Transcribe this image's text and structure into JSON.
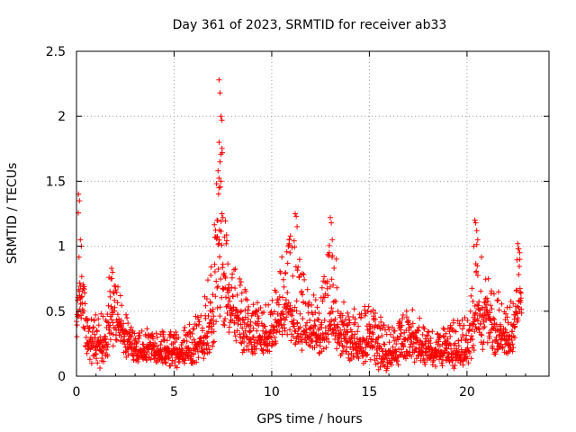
{
  "chart_data": {
    "type": "scatter",
    "title": "Day 361 of 2023, SRMTID for receiver ab33",
    "xlabel": "GPS time / hours",
    "ylabel": "SRMTID / TECUs",
    "xlim": [
      0,
      24.2
    ],
    "ylim": [
      0,
      2.5
    ],
    "xticks": [
      0,
      5,
      10,
      15,
      20
    ],
    "xtick_labels": [
      "0",
      "5",
      "10",
      "15",
      "20"
    ],
    "yticks": [
      0,
      0.5,
      1,
      1.5,
      2,
      2.5
    ],
    "ytick_labels": [
      "0",
      "0.5",
      "1",
      "1.5",
      "2",
      "2.5"
    ],
    "grid": true,
    "marker": "+",
    "colors": {
      "points": "#ff0000",
      "axes": "#000000",
      "grid": "#a0a0a0"
    },
    "series": [
      {
        "name": "SRMTID",
        "profile_x": [
          0,
          0.1,
          0.2,
          0.4,
          0.6,
          0.9,
          1.2,
          1.5,
          1.8,
          2.1,
          2.4,
          2.8,
          3.2,
          3.6,
          4.0,
          4.5,
          5.0,
          5.5,
          6.0,
          6.4,
          6.7,
          7.0,
          7.2,
          7.4,
          7.6,
          7.9,
          8.2,
          8.6,
          9.0,
          9.5,
          10.0,
          10.4,
          10.8,
          11.2,
          11.6,
          12.0,
          12.4,
          12.8,
          13.1,
          13.5,
          14.0,
          14.5,
          15.0,
          15.4,
          15.8,
          16.2,
          16.6,
          17.0,
          17.4,
          17.8,
          18.2,
          18.6,
          19.0,
          19.5,
          20.0,
          20.3,
          20.5,
          20.7,
          21.0,
          21.3,
          21.6,
          22.0,
          22.3,
          22.6,
          22.8
        ],
        "profile_median": [
          0.45,
          0.75,
          0.65,
          0.45,
          0.35,
          0.28,
          0.25,
          0.3,
          0.55,
          0.45,
          0.35,
          0.22,
          0.2,
          0.22,
          0.2,
          0.2,
          0.18,
          0.18,
          0.2,
          0.28,
          0.35,
          0.5,
          0.85,
          1.0,
          0.7,
          0.55,
          0.5,
          0.4,
          0.3,
          0.3,
          0.35,
          0.45,
          0.6,
          0.4,
          0.35,
          0.35,
          0.3,
          0.38,
          0.45,
          0.35,
          0.28,
          0.3,
          0.3,
          0.25,
          0.18,
          0.18,
          0.2,
          0.35,
          0.3,
          0.22,
          0.2,
          0.2,
          0.2,
          0.18,
          0.2,
          0.35,
          0.75,
          0.55,
          0.5,
          0.4,
          0.35,
          0.3,
          0.3,
          0.6,
          0.6
        ],
        "profile_max": [
          0.9,
          1.42,
          1.05,
          0.7,
          0.55,
          0.5,
          0.5,
          0.65,
          0.85,
          0.7,
          0.55,
          0.38,
          0.35,
          0.38,
          0.35,
          0.35,
          0.35,
          0.38,
          0.45,
          0.55,
          0.75,
          1.0,
          1.6,
          2.3,
          1.3,
          1.0,
          0.9,
          0.7,
          0.55,
          0.6,
          0.65,
          0.85,
          1.1,
          1.25,
          0.8,
          0.65,
          0.6,
          0.85,
          1.22,
          0.65,
          0.5,
          0.55,
          0.55,
          0.5,
          0.4,
          0.38,
          0.45,
          0.55,
          0.5,
          0.38,
          0.35,
          0.35,
          0.4,
          0.45,
          0.5,
          0.75,
          1.2,
          1.0,
          0.8,
          0.7,
          0.65,
          0.6,
          0.6,
          1.02,
          0.95
        ],
        "profile_min": [
          0.25,
          0.35,
          0.3,
          0.2,
          0.12,
          0.06,
          0.05,
          0.08,
          0.2,
          0.2,
          0.15,
          0.1,
          0.1,
          0.1,
          0.1,
          0.08,
          0.06,
          0.06,
          0.06,
          0.1,
          0.15,
          0.2,
          0.35,
          0.4,
          0.3,
          0.25,
          0.2,
          0.15,
          0.15,
          0.15,
          0.2,
          0.25,
          0.3,
          0.2,
          0.15,
          0.15,
          0.12,
          0.15,
          0.2,
          0.15,
          0.1,
          0.1,
          0.08,
          0.05,
          0.02,
          0.05,
          0.05,
          0.12,
          0.1,
          0.08,
          0.06,
          0.06,
          0.06,
          0.05,
          0.08,
          0.15,
          0.3,
          0.2,
          0.15,
          0.15,
          0.15,
          0.12,
          0.12,
          0.35,
          0.4
        ],
        "point_count": 2000,
        "notable_points": [
          {
            "x": 0.1,
            "y": 1.4
          },
          {
            "x": 0.15,
            "y": 1.35
          },
          {
            "x": 0.2,
            "y": 1.05
          },
          {
            "x": 0.25,
            "y": 1.0
          },
          {
            "x": 1.8,
            "y": 0.83
          },
          {
            "x": 1.85,
            "y": 0.8
          },
          {
            "x": 7.3,
            "y": 2.28
          },
          {
            "x": 7.35,
            "y": 2.18
          },
          {
            "x": 7.4,
            "y": 2.0
          },
          {
            "x": 7.45,
            "y": 1.97
          },
          {
            "x": 7.3,
            "y": 1.8
          },
          {
            "x": 7.35,
            "y": 1.65
          },
          {
            "x": 7.25,
            "y": 1.58
          },
          {
            "x": 7.4,
            "y": 1.5
          },
          {
            "x": 7.3,
            "y": 1.45
          },
          {
            "x": 7.45,
            "y": 1.25
          },
          {
            "x": 7.5,
            "y": 1.22
          },
          {
            "x": 7.2,
            "y": 1.2
          },
          {
            "x": 11.2,
            "y": 1.25
          },
          {
            "x": 11.25,
            "y": 1.23
          },
          {
            "x": 11.3,
            "y": 1.15
          },
          {
            "x": 10.9,
            "y": 1.05
          },
          {
            "x": 13.0,
            "y": 1.22
          },
          {
            "x": 13.05,
            "y": 1.18
          },
          {
            "x": 13.1,
            "y": 1.05
          },
          {
            "x": 12.95,
            "y": 0.95
          },
          {
            "x": 20.4,
            "y": 1.2
          },
          {
            "x": 20.45,
            "y": 1.18
          },
          {
            "x": 20.5,
            "y": 1.12
          },
          {
            "x": 20.55,
            "y": 1.05
          },
          {
            "x": 20.35,
            "y": 1.0
          },
          {
            "x": 22.6,
            "y": 1.02
          },
          {
            "x": 22.65,
            "y": 0.98
          },
          {
            "x": 22.7,
            "y": 0.95
          }
        ]
      }
    ]
  }
}
